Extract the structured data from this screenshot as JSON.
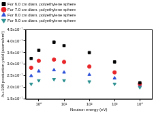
{
  "chart_data": {
    "type": "scatter",
    "x_label": "Neutron energy (eV)",
    "y_label": "Au-198 production yield (atoms/cm³)",
    "log": "x",
    "grid": false,
    "legend": "top",
    "xlim": [
      0.3,
      30000
    ],
    "xticks": [
      {
        "value": 1,
        "label": "10⁰"
      },
      {
        "value": 10,
        "label": "10¹"
      },
      {
        "value": 100,
        "label": "10²"
      },
      {
        "value": 1000,
        "label": "10³"
      },
      {
        "value": 10000,
        "label": "10⁴"
      }
    ],
    "ylim": [
      1.5e-07,
      4.5e-07
    ],
    "yticks": [
      {
        "value": 1.5e-07,
        "label": "1.5x10⁻⁷"
      },
      {
        "value": 2e-07,
        "label": "2.0x10⁻⁷"
      },
      {
        "value": 2.5e-07,
        "label": "2.5x10⁻⁷"
      },
      {
        "value": 3e-07,
        "label": "3.0x10⁻⁷"
      },
      {
        "value": 3.5e-07,
        "label": "3.5x10⁻⁷"
      },
      {
        "value": 4e-07,
        "label": "4.0x10⁻⁷"
      },
      {
        "value": 4.5e-07,
        "label": "4.5x10⁻⁷"
      }
    ],
    "x": [
      0.5,
      1,
      4,
      10,
      100,
      1000,
      10000
    ],
    "series": [
      {
        "name": "For 6.0 cm diam. polyethylene sphere",
        "color": "#000000",
        "marker": "square",
        "values": [
          3.25e-07,
          3.6e-07,
          3.95e-07,
          3.8e-07,
          3.5e-07,
          3.1e-07,
          2.2e-07
        ]
      },
      {
        "name": "For 7.0 cm diam. polyethylene sphere",
        "color": "#e8262a",
        "marker": "circle",
        "values": [
          2.85e-07,
          3.15e-07,
          3.2e-07,
          3.1e-07,
          2.9e-07,
          2.65e-07,
          2.15e-07
        ]
      },
      {
        "name": "For 8.0 cm diam. polyethylene sphere",
        "color": "#2b4fd8",
        "marker": "triangle",
        "values": [
          2.5e-07,
          2.7e-07,
          2.75e-07,
          2.65e-07,
          2.55e-07,
          2.4e-07,
          2.1e-07
        ]
      },
      {
        "name": "For 9.0 cm diam. polyethylene sphere",
        "color": "#2a8f8f",
        "marker": "triangle-down",
        "values": [
          2.15e-07,
          2.3e-07,
          2.35e-07,
          2.3e-07,
          2.25e-07,
          2.15e-07,
          2e-07
        ]
      }
    ]
  }
}
